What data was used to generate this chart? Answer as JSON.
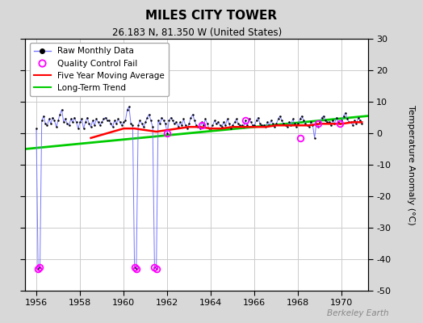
{
  "title": "MILES CITY TOWER",
  "subtitle": "26.183 N, 81.350 W (United States)",
  "ylabel_right": "Temperature Anomaly (°C)",
  "watermark": "Berkeley Earth",
  "xlim": [
    1955.5,
    1971.2
  ],
  "ylim": [
    -50,
    30
  ],
  "yticks": [
    -50,
    -40,
    -30,
    -20,
    -10,
    0,
    10,
    20,
    30
  ],
  "xticks": [
    1956,
    1958,
    1960,
    1962,
    1964,
    1966,
    1968,
    1970
  ],
  "fig_bg": "#d8d8d8",
  "plot_bg": "#ffffff",
  "raw_line_color": "#7777ff",
  "raw_dot_color": "#000000",
  "qc_fail_color": "#ff00ff",
  "moving_avg_color": "#ff0000",
  "trend_color": "#00cc00",
  "grid_color": "#cccccc",
  "raw_monthly_x": [
    1956.0,
    1956.083,
    1956.167,
    1956.25,
    1956.333,
    1956.417,
    1956.5,
    1956.583,
    1956.667,
    1956.75,
    1956.833,
    1956.917,
    1957.0,
    1957.083,
    1957.167,
    1957.25,
    1957.333,
    1957.417,
    1957.5,
    1957.583,
    1957.667,
    1957.75,
    1957.833,
    1957.917,
    1958.0,
    1958.083,
    1958.167,
    1958.25,
    1958.333,
    1958.417,
    1958.5,
    1958.583,
    1958.667,
    1958.75,
    1958.833,
    1958.917,
    1959.0,
    1959.083,
    1959.167,
    1959.25,
    1959.333,
    1959.417,
    1959.5,
    1959.583,
    1959.667,
    1959.75,
    1959.833,
    1959.917,
    1960.0,
    1960.083,
    1960.167,
    1960.25,
    1960.333,
    1960.417,
    1960.5,
    1960.583,
    1960.667,
    1960.75,
    1960.833,
    1960.917,
    1961.0,
    1961.083,
    1961.167,
    1961.25,
    1961.333,
    1961.417,
    1961.5,
    1961.583,
    1961.667,
    1961.75,
    1961.833,
    1961.917,
    1962.0,
    1962.083,
    1962.167,
    1962.25,
    1962.333,
    1962.417,
    1962.5,
    1962.583,
    1962.667,
    1962.75,
    1962.833,
    1962.917,
    1963.0,
    1963.083,
    1963.167,
    1963.25,
    1963.333,
    1963.417,
    1963.5,
    1963.583,
    1963.667,
    1963.75,
    1963.833,
    1963.917,
    1964.0,
    1964.083,
    1964.167,
    1964.25,
    1964.333,
    1964.417,
    1964.5,
    1964.583,
    1964.667,
    1964.75,
    1964.833,
    1964.917,
    1965.0,
    1965.083,
    1965.167,
    1965.25,
    1965.333,
    1965.417,
    1965.5,
    1965.583,
    1965.667,
    1965.75,
    1965.833,
    1965.917,
    1966.0,
    1966.083,
    1966.167,
    1966.25,
    1966.333,
    1966.417,
    1966.5,
    1966.583,
    1966.667,
    1966.75,
    1966.833,
    1966.917,
    1967.0,
    1967.083,
    1967.167,
    1967.25,
    1967.333,
    1967.417,
    1967.5,
    1967.583,
    1967.667,
    1967.75,
    1967.833,
    1967.917,
    1968.0,
    1968.083,
    1968.167,
    1968.25,
    1968.333,
    1968.417,
    1968.5,
    1968.583,
    1968.667,
    1968.75,
    1968.833,
    1968.917,
    1969.0,
    1969.083,
    1969.167,
    1969.25,
    1969.333,
    1969.417,
    1969.5,
    1969.583,
    1969.667,
    1969.75,
    1969.833,
    1969.917,
    1970.0,
    1970.083,
    1970.167,
    1970.25,
    1970.333,
    1970.417,
    1970.5,
    1970.583,
    1970.667,
    1970.75,
    1970.833,
    1970.917
  ],
  "raw_monthly_y": [
    1.5,
    -43.0,
    -42.5,
    4.0,
    5.5,
    3.0,
    2.5,
    4.5,
    3.0,
    5.0,
    4.0,
    2.0,
    4.0,
    6.0,
    7.5,
    3.5,
    4.5,
    3.0,
    2.5,
    4.5,
    3.5,
    5.0,
    3.5,
    1.5,
    3.5,
    4.5,
    1.5,
    3.5,
    5.0,
    3.0,
    2.0,
    4.0,
    2.5,
    4.5,
    3.5,
    2.5,
    3.5,
    4.5,
    5.0,
    4.0,
    4.0,
    3.0,
    2.0,
    4.0,
    3.0,
    4.5,
    3.5,
    2.5,
    3.5,
    4.0,
    7.5,
    8.5,
    3.0,
    2.5,
    -42.5,
    -43.0,
    2.5,
    4.0,
    3.0,
    2.0,
    3.5,
    5.0,
    6.0,
    4.0,
    2.0,
    -42.5,
    -43.0,
    4.0,
    3.0,
    5.0,
    4.0,
    3.0,
    0.0,
    4.0,
    5.0,
    4.0,
    3.0,
    3.5,
    2.0,
    3.5,
    2.5,
    4.5,
    2.5,
    1.5,
    3.0,
    5.0,
    6.0,
    4.0,
    2.5,
    2.0,
    1.5,
    3.5,
    2.5,
    4.5,
    3.0,
    1.5,
    1.5,
    2.5,
    4.0,
    3.0,
    3.5,
    2.5,
    2.0,
    3.5,
    2.5,
    4.5,
    3.0,
    1.5,
    2.5,
    3.5,
    4.5,
    3.0,
    2.5,
    2.5,
    2.0,
    4.0,
    2.5,
    4.5,
    3.5,
    2.5,
    2.5,
    4.0,
    5.0,
    3.0,
    2.5,
    2.5,
    2.0,
    3.5,
    2.5,
    4.0,
    3.0,
    2.0,
    3.0,
    4.5,
    5.5,
    4.0,
    3.0,
    2.5,
    2.0,
    3.5,
    2.5,
    4.5,
    3.0,
    2.0,
    3.0,
    4.5,
    5.5,
    4.0,
    3.0,
    2.5,
    2.0,
    3.5,
    2.5,
    -1.5,
    3.0,
    2.0,
    3.5,
    5.0,
    5.5,
    4.0,
    3.5,
    3.5,
    2.5,
    4.0,
    3.0,
    5.0,
    3.5,
    3.0,
    4.0,
    5.5,
    6.5,
    4.5,
    3.5,
    3.5,
    2.5,
    4.0,
    3.0,
    5.0,
    4.0,
    3.0
  ],
  "qc_fail_x": [
    1956.083,
    1956.167,
    1960.5,
    1960.583,
    1961.417,
    1961.5,
    1962.0,
    1963.583,
    1965.583,
    1968.083,
    1968.917,
    1969.917
  ],
  "qc_fail_y": [
    -43.0,
    -42.5,
    -42.5,
    -43.0,
    -42.5,
    -43.0,
    0.0,
    2.5,
    4.0,
    -1.5,
    3.0,
    3.0
  ],
  "moving_avg_x": [
    1958.5,
    1959.0,
    1959.5,
    1960.0,
    1960.5,
    1961.0,
    1961.5,
    1962.0,
    1962.5,
    1963.0,
    1963.5,
    1964.0,
    1964.5,
    1965.0,
    1965.5,
    1966.0,
    1966.5,
    1967.0,
    1967.5,
    1968.0,
    1968.5,
    1969.0,
    1969.5,
    1970.0,
    1970.5,
    1970.917
  ],
  "moving_avg_y": [
    -1.5,
    -0.5,
    0.5,
    1.5,
    1.5,
    1.0,
    0.5,
    1.0,
    1.5,
    2.0,
    2.0,
    1.5,
    1.5,
    2.0,
    2.0,
    2.0,
    2.0,
    2.5,
    2.5,
    2.5,
    2.5,
    3.0,
    3.0,
    3.0,
    3.5,
    3.5
  ],
  "trend_x": [
    1955.5,
    1971.2
  ],
  "trend_y": [
    -5.0,
    5.5
  ]
}
